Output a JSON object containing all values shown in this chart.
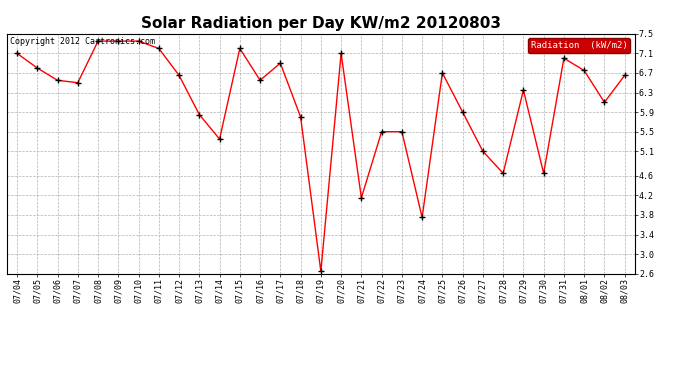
{
  "title": "Solar Radiation per Day KW/m2 20120803",
  "copyright": "Copyright 2012 Cartronics.com",
  "legend_label": "Radiation  (kW/m2)",
  "dates": [
    "07/04",
    "07/05",
    "07/06",
    "07/07",
    "07/08",
    "07/09",
    "07/10",
    "07/11",
    "07/12",
    "07/13",
    "07/14",
    "07/15",
    "07/16",
    "07/17",
    "07/18",
    "07/19",
    "07/20",
    "07/21",
    "07/22",
    "07/23",
    "07/24",
    "07/25",
    "07/26",
    "07/27",
    "07/28",
    "07/29",
    "07/30",
    "07/31",
    "08/01",
    "08/02",
    "08/03"
  ],
  "values": [
    7.1,
    6.8,
    6.55,
    6.5,
    7.35,
    7.35,
    7.35,
    7.2,
    6.65,
    5.85,
    5.35,
    7.2,
    6.55,
    6.9,
    5.8,
    2.65,
    7.1,
    4.15,
    5.5,
    5.5,
    3.75,
    6.7,
    5.9,
    5.1,
    4.65,
    6.35,
    4.65,
    7.0,
    6.75,
    6.1,
    6.65
  ],
  "ylim": [
    2.6,
    7.5
  ],
  "yticks": [
    2.6,
    3.0,
    3.4,
    3.8,
    4.2,
    4.6,
    5.1,
    5.5,
    5.9,
    6.3,
    6.7,
    7.1,
    7.5
  ],
  "line_color": "red",
  "marker_color": "black",
  "background_color": "#ffffff",
  "plot_bg_color": "#ffffff",
  "grid_color": "#aaaaaa",
  "title_fontsize": 11,
  "copyright_fontsize": 6,
  "tick_fontsize": 6,
  "legend_fontsize": 6.5,
  "legend_bg": "#cc0000",
  "legend_fg": "white"
}
